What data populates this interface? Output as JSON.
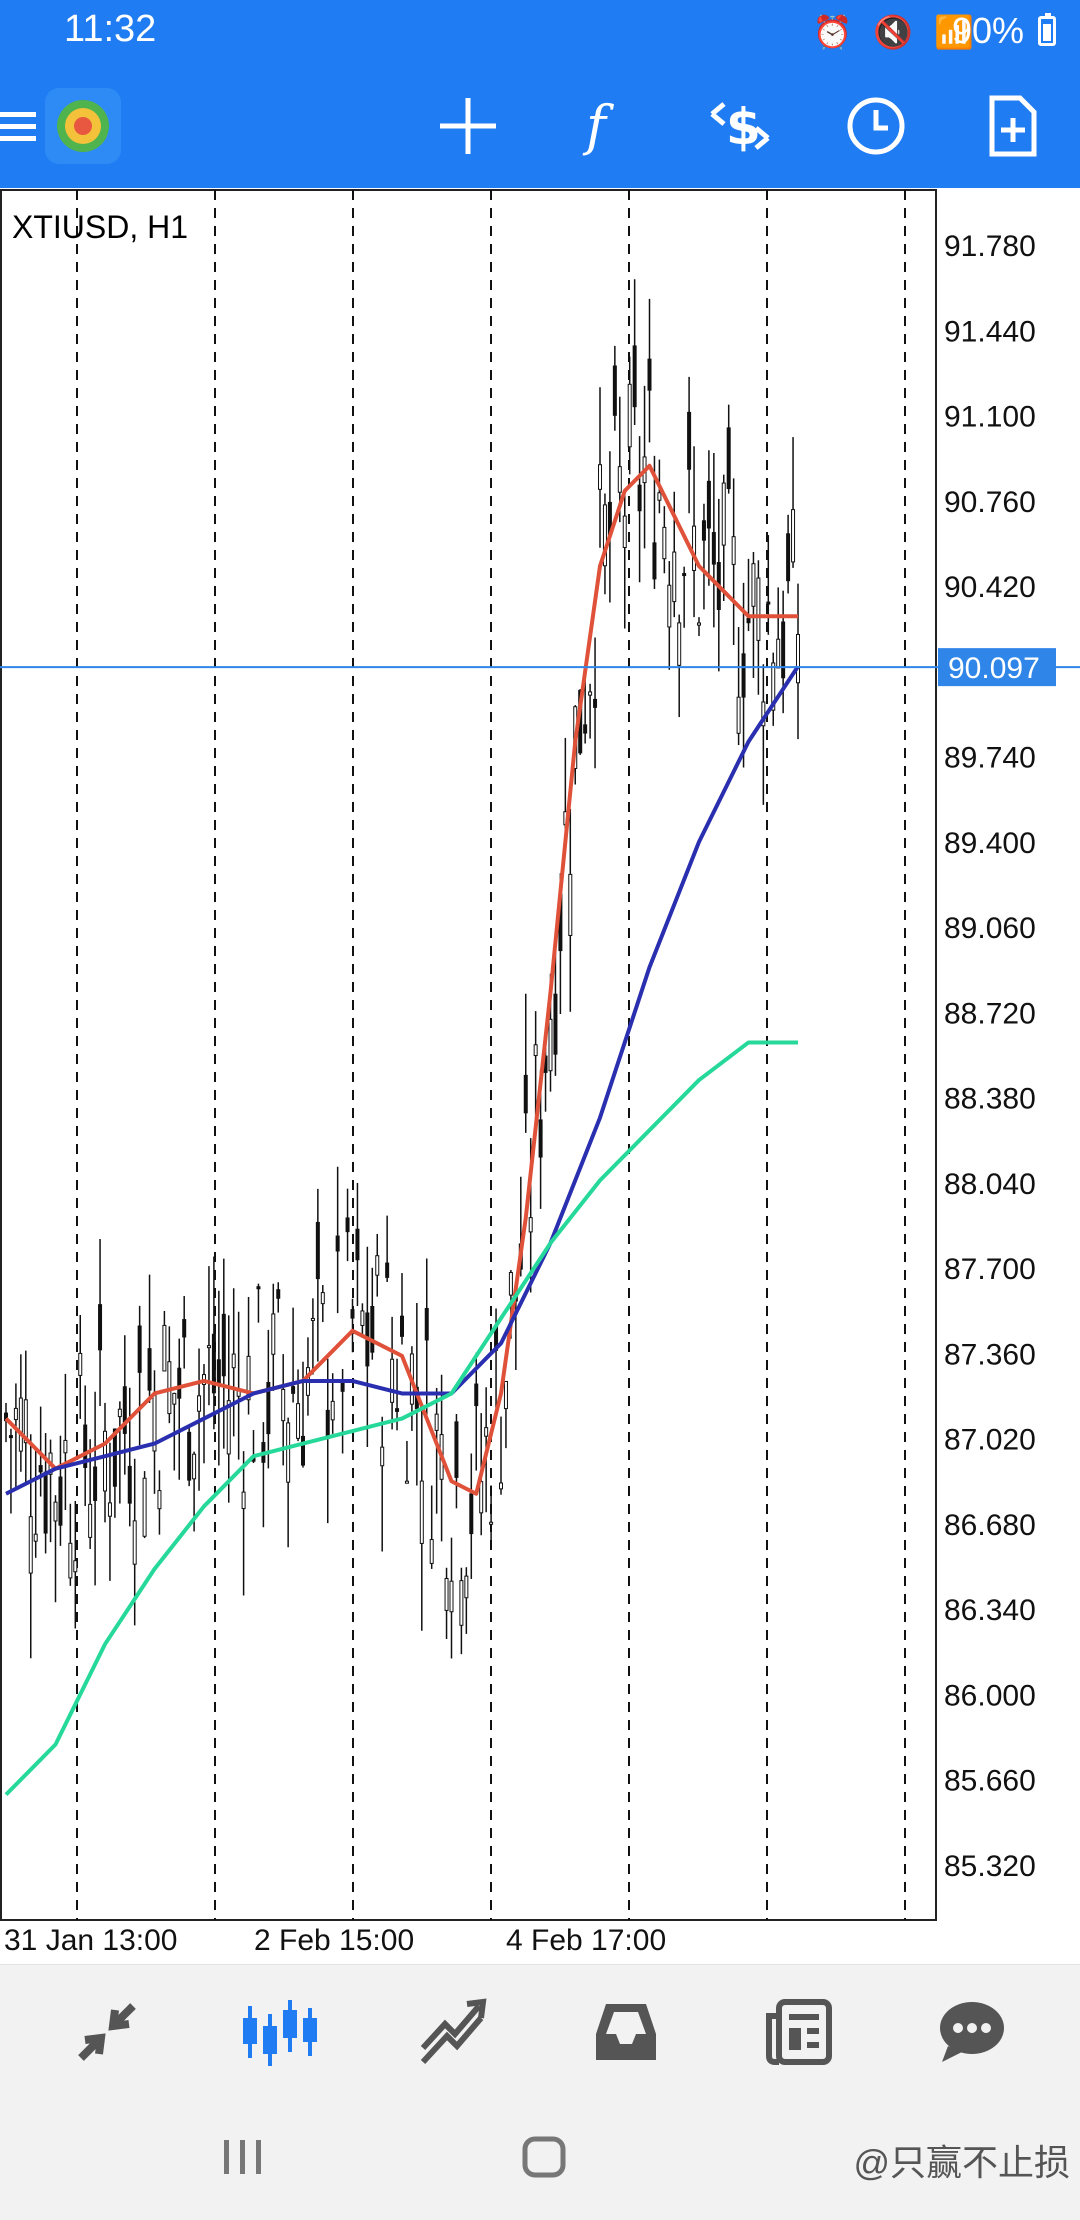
{
  "status_bar": {
    "time": "11:32",
    "battery": "90%",
    "icons": [
      "alarm-icon",
      "mute-icon",
      "battery-saver-icon",
      "wifi-icon",
      "4g-signal-icon",
      "battery-icon"
    ]
  },
  "toolbar": {
    "buttons": [
      "menu-icon",
      "app-logo",
      "crosshair-icon",
      "indicators-icon",
      "trade-icon",
      "timeframe-clock-icon",
      "templates-icon"
    ]
  },
  "chart": {
    "symbol_label": "XTIUSD, H1",
    "current_price": "90.097",
    "y_ticks": [
      "91.780",
      "91.440",
      "91.100",
      "90.760",
      "90.420",
      "89.740",
      "89.400",
      "89.060",
      "88.720",
      "88.380",
      "88.040",
      "87.700",
      "87.360",
      "87.020",
      "86.680",
      "86.340",
      "86.000",
      "85.660",
      "85.320"
    ],
    "x_ticks": [
      "31 Jan 13:00",
      "2 Feb 15:00",
      "4 Feb 17:00"
    ]
  },
  "chart_data": {
    "type": "line",
    "title": "XTIUSD, H1",
    "ylim": [
      85.1,
      92.0
    ],
    "x_labels": [
      "31 Jan 13:00",
      "2 Feb 15:00",
      "4 Feb 17:00"
    ],
    "current_price": 90.097,
    "grid": "vertical dashed",
    "series": [
      {
        "color": "#e0513a",
        "x": [
          0,
          10,
          20,
          30,
          40,
          50,
          60,
          70,
          80,
          85,
          90,
          95,
          100,
          105,
          110,
          115,
          120,
          125,
          130,
          135,
          140,
          145,
          150,
          160
        ],
        "values": [
          87.1,
          86.9,
          87.0,
          87.2,
          87.25,
          87.2,
          87.25,
          87.45,
          87.35,
          87.1,
          86.85,
          86.8,
          87.2,
          87.9,
          88.8,
          89.8,
          90.5,
          90.8,
          90.9,
          90.7,
          90.5,
          90.4,
          90.3,
          90.3
        ]
      },
      {
        "color": "#2a2fb0",
        "x": [
          0,
          10,
          20,
          30,
          40,
          50,
          60,
          70,
          80,
          90,
          100,
          110,
          120,
          130,
          140,
          150,
          160
        ],
        "values": [
          86.8,
          86.9,
          86.95,
          87.0,
          87.1,
          87.2,
          87.25,
          87.25,
          87.2,
          87.2,
          87.4,
          87.8,
          88.3,
          88.9,
          89.4,
          89.8,
          90.1
        ]
      },
      {
        "color": "#26d99a",
        "x": [
          0,
          10,
          20,
          30,
          40,
          50,
          60,
          70,
          80,
          90,
          100,
          110,
          120,
          130,
          140,
          150,
          160
        ],
        "values": [
          85.6,
          85.8,
          86.2,
          86.5,
          86.75,
          86.95,
          87.0,
          87.05,
          87.1,
          87.2,
          87.5,
          87.8,
          88.05,
          88.25,
          88.45,
          88.6,
          88.6
        ]
      }
    ]
  },
  "bottom_nav": {
    "items": [
      "quotes-icon",
      "chart-icon",
      "trade-icon",
      "history-icon",
      "news-icon",
      "chat-icon"
    ],
    "active": "chart-icon",
    "active_color": "#1f7cf2"
  },
  "system_nav": {
    "watermark": "@只赢不止损"
  }
}
